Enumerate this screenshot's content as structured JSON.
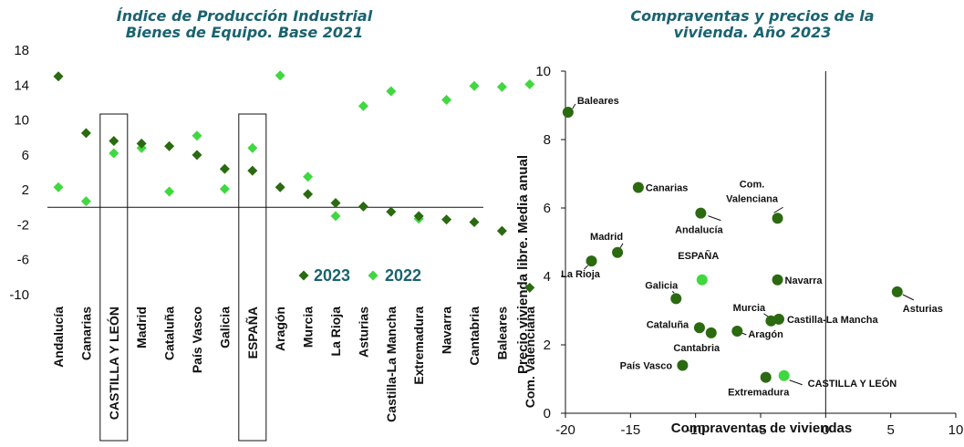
{
  "colors": {
    "series_2023": "#2b6a10",
    "series_2022": "#3fd83f",
    "title": "#1a6370"
  },
  "chart_data": [
    {
      "type": "scatter",
      "title_lines": [
        "Índice de Producción Industrial",
        "Bienes de Equipo. Base 2021"
      ],
      "xlabel": "",
      "ylabel": "",
      "ylim": [
        -10,
        18
      ],
      "yticks": [
        "18",
        "14",
        "10",
        "6",
        "2",
        "-2",
        "-6",
        "-10"
      ],
      "categories": [
        "Andalucía",
        "Canarias",
        "CASTILLA Y LEÓN",
        "Madrid",
        "Cataluña",
        "País Vasco",
        "Galicia",
        "ESPAÑA",
        "Aragón",
        "Murcia",
        "La Rioja",
        "Asturias",
        "Castilla-La Mancha",
        "Extremadura",
        "Navarra",
        "Cantabria",
        "Baleares",
        "Com. Valenciana"
      ],
      "highlighted_categories": [
        "CASTILLA Y LEÓN",
        "ESPAÑA"
      ],
      "series": [
        {
          "name": "2023",
          "marker": "diamond",
          "values": [
            15.0,
            8.5,
            7.6,
            7.3,
            7.0,
            6.0,
            4.4,
            4.2,
            2.3,
            1.5,
            0.5,
            0.1,
            -0.5,
            -1.0,
            -1.4,
            -1.7,
            -2.7,
            -9.2
          ]
        },
        {
          "name": "2022",
          "marker": "diamond",
          "values": [
            2.3,
            0.7,
            6.2,
            6.8,
            1.8,
            8.2,
            2.1,
            6.8,
            15.1,
            3.5,
            -1.0,
            11.6,
            13.3,
            -1.3,
            12.3,
            13.9,
            13.8,
            14.1
          ]
        }
      ],
      "legend": [
        "2023",
        "2022"
      ],
      "legend_position": "bottom-right"
    },
    {
      "type": "scatter",
      "title_lines": [
        "Compraventas y precios de la",
        "vivienda. Año 2023"
      ],
      "xlabel": "Compraventas de viviendas",
      "ylabel": "Precio vivienda libre. Media anual",
      "xlim": [
        -20,
        10
      ],
      "ylim": [
        0,
        10
      ],
      "xticks": [
        "-20",
        "-15",
        "-10",
        "-5",
        "0",
        "5",
        "10"
      ],
      "yticks": [
        "0",
        "2",
        "4",
        "6",
        "8",
        "10"
      ],
      "points": [
        {
          "label": "Baleares",
          "x": -19.8,
          "y": 8.8
        },
        {
          "label": "Canarias",
          "x": -14.4,
          "y": 6.6
        },
        {
          "label": "Com.",
          "label2": "Valenciana",
          "x": -3.7,
          "y": 5.7
        },
        {
          "label": "Andalucía",
          "x": -9.6,
          "y": 5.85
        },
        {
          "label": "Madrid",
          "x": -16.0,
          "y": 4.7
        },
        {
          "label": "La Rioja",
          "x": -18.0,
          "y": 4.45
        },
        {
          "label": "ESPAÑA",
          "x": -9.5,
          "y": 3.9,
          "highlight": true
        },
        {
          "label": "Navarra",
          "x": -3.7,
          "y": 3.9
        },
        {
          "label": "Asturias",
          "x": 5.5,
          "y": 3.55
        },
        {
          "label": "Galicia",
          "x": -11.5,
          "y": 3.35
        },
        {
          "label": "Murcia",
          "x": -4.2,
          "y": 2.7
        },
        {
          "label": "Castilla-La Mancha",
          "x": -3.6,
          "y": 2.75
        },
        {
          "label": "Cataluña",
          "x": -9.7,
          "y": 2.5
        },
        {
          "label": "Aragón",
          "x": -6.8,
          "y": 2.4
        },
        {
          "label": "Cantabria",
          "x": -8.8,
          "y": 2.35
        },
        {
          "label": "País Vasco",
          "x": -11.0,
          "y": 1.4
        },
        {
          "label": "Extremadura",
          "x": -4.6,
          "y": 1.05
        },
        {
          "label": "CASTILLA Y LEÓN",
          "x": -3.2,
          "y": 1.1,
          "highlight": true
        }
      ]
    }
  ]
}
